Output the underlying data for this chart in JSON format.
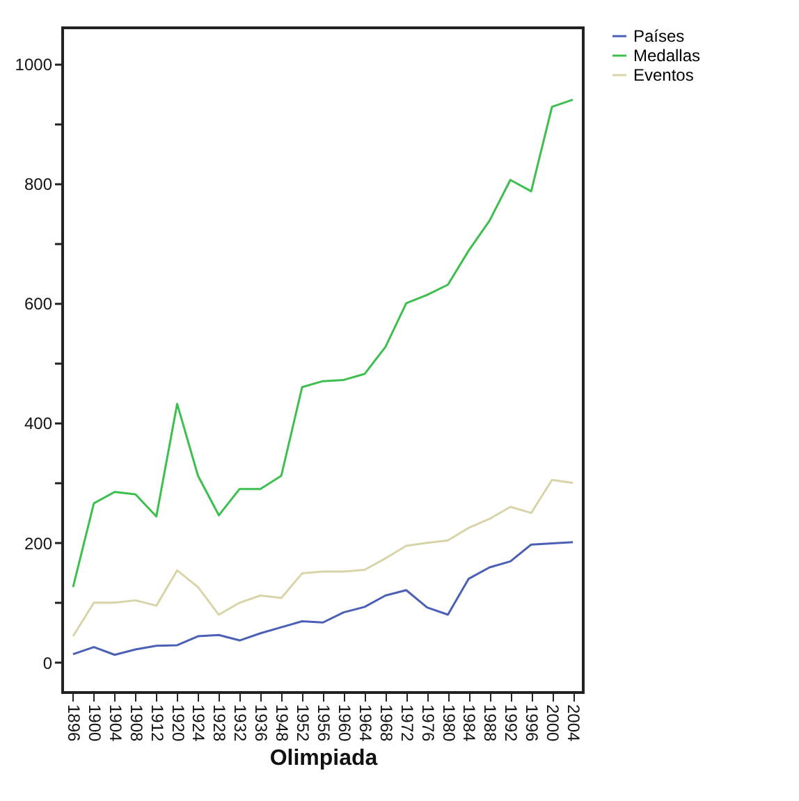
{
  "chart_data": {
    "type": "line",
    "xlabel": "Olimpiada",
    "categories": [
      "1896",
      "1900",
      "1904",
      "1908",
      "1912",
      "1920",
      "1924",
      "1928",
      "1932",
      "1936",
      "1948",
      "1952",
      "1956",
      "1960",
      "1964",
      "1968",
      "1972",
      "1976",
      "1980",
      "1984",
      "1988",
      "1992",
      "1996",
      "2000",
      "2004"
    ],
    "ylim": [
      -50,
      1060
    ],
    "yticks": [
      0,
      {
        "value": 100,
        "label": null
      },
      200,
      {
        "value": 300,
        "label": null
      },
      400,
      {
        "value": 500,
        "label": null
      },
      600,
      {
        "value": 700,
        "label": null
      },
      800,
      {
        "value": 900,
        "label": null
      },
      1000
    ],
    "legend": "top right",
    "grid": false,
    "marker": "none",
    "line_style": "solid",
    "series": [
      {
        "name": "Países",
        "color": "#4a5fb5",
        "values": [
          14,
          26,
          13,
          22,
          28,
          29,
          44,
          46,
          37,
          49,
          59,
          69,
          67,
          84,
          93,
          112,
          121,
          92,
          80,
          140,
          159,
          169,
          197,
          199,
          201
        ]
      },
      {
        "name": "Medallas",
        "color": "#3cbf4e",
        "values": [
          126,
          266,
          285,
          281,
          244,
          432,
          312,
          246,
          290,
          290,
          312,
          460,
          470,
          472,
          482,
          527,
          600,
          614,
          631,
          688,
          738,
          806,
          787,
          928,
          940
        ]
      },
      {
        "name": "Eventos",
        "color": "#d8d4a8",
        "values": [
          44,
          100,
          100,
          104,
          95,
          154,
          126,
          80,
          100,
          112,
          108,
          149,
          152,
          152,
          155,
          174,
          195,
          200,
          204,
          225,
          240,
          260,
          250,
          305,
          300
        ]
      }
    ]
  }
}
